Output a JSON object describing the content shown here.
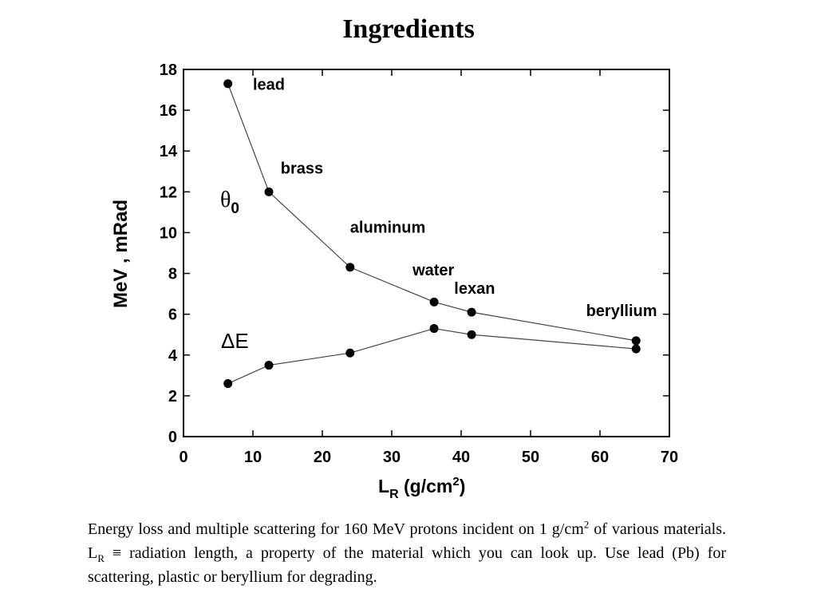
{
  "slide": {
    "title": "Ingredients"
  },
  "chart_data": {
    "type": "line",
    "xlim": [
      0,
      70
    ],
    "ylim": [
      0,
      18
    ],
    "xticks": [
      0,
      10,
      20,
      30,
      40,
      50,
      60,
      70
    ],
    "yticks": [
      0,
      2,
      4,
      6,
      8,
      10,
      12,
      14,
      16,
      18
    ],
    "xlabel_main": "L",
    "xlabel_sub": "R",
    "xlabel_rest": "  (g/cm",
    "xlabel_sup": "2",
    "xlabel_end": ")",
    "ylabel": "MeV ,  mRad",
    "series": [
      {
        "name": "θ0",
        "label_main": "θ",
        "label_sub": "0",
        "x": [
          6.4,
          12.3,
          24.0,
          36.1,
          41.5,
          65.2
        ],
        "y": [
          17.3,
          12.0,
          8.3,
          6.6,
          6.1,
          4.7
        ]
      },
      {
        "name": "ΔE",
        "label_main": "ΔE",
        "x": [
          6.4,
          12.3,
          24.0,
          36.1,
          41.5,
          65.2
        ],
        "y": [
          2.6,
          3.5,
          4.1,
          5.3,
          5.0,
          4.3
        ]
      }
    ],
    "annotations": [
      {
        "text": "lead",
        "x": 10,
        "y": 17.0
      },
      {
        "text": "brass",
        "x": 14,
        "y": 12.9
      },
      {
        "text": "aluminum",
        "x": 24,
        "y": 10.0
      },
      {
        "text": "water",
        "x": 33,
        "y": 7.9
      },
      {
        "text": "lexan",
        "x": 39,
        "y": 7.0
      },
      {
        "text": "beryllium",
        "x": 58,
        "y": 5.9
      }
    ]
  },
  "caption": {
    "line1": "Energy loss and multiple scattering for 160 MeV protons incident on 1 g/cm",
    "line1_sup": "2",
    "line2a": "of various materials.  L",
    "line2_sub": "R",
    "line2b": " ≡ radiation length, a property of the material which you can look up. Use lead (Pb) for scattering, plastic or beryllium for degrading."
  }
}
